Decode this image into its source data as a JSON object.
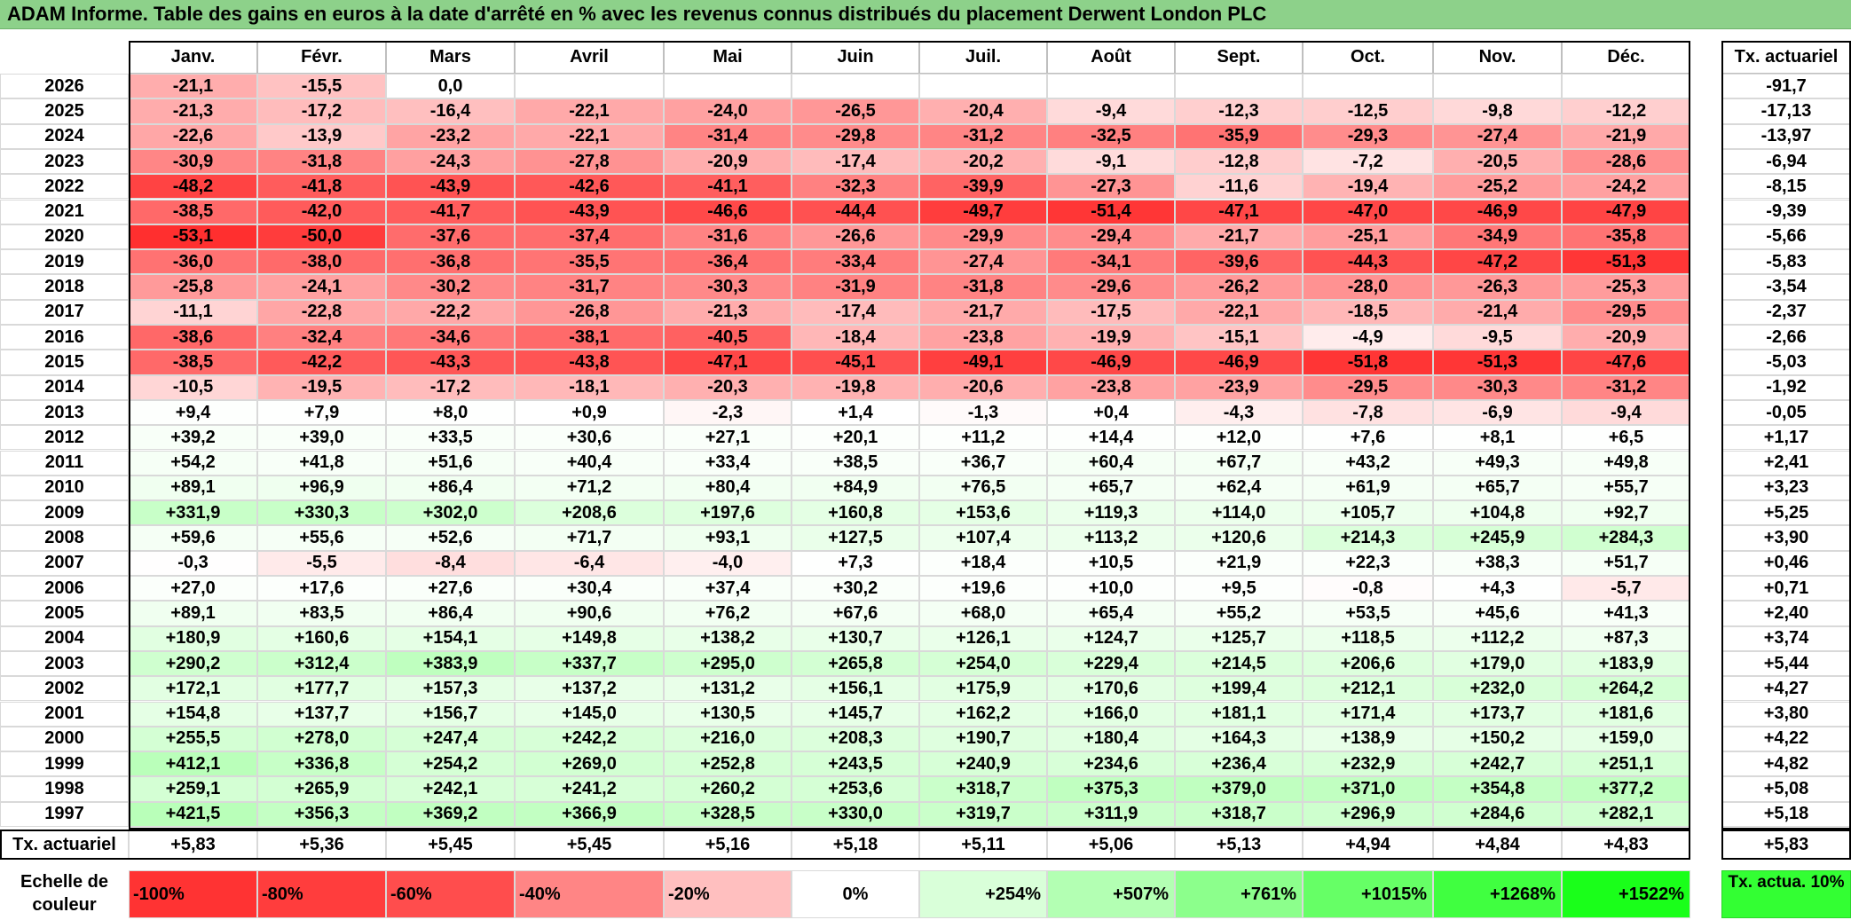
{
  "title": "ADAM Informe. Table des gains en euros à la date d'arrêté en % avec les revenus connus distribués du placement Derwent London PLC",
  "chart_data": {
    "type": "heatmap",
    "title": "ADAM Informe. Table des gains en euros à la date d'arrêté en % avec les revenus connus distribués du placement Derwent London PLC",
    "columns": [
      "Janv.",
      "Févr.",
      "Mars",
      "Avril",
      "Mai",
      "Juin",
      "Juil.",
      "Août",
      "Sept.",
      "Oct.",
      "Nov.",
      "Déc."
    ],
    "rate_column_label": "Tx. actuariel",
    "rows": [
      {
        "year": "2026",
        "values": [
          "-21,1",
          "-15,5",
          "0,0",
          "",
          "",
          "",
          "",
          "",
          "",
          "",
          "",
          ""
        ],
        "rate": "-91,7"
      },
      {
        "year": "2025",
        "values": [
          "-21,3",
          "-17,2",
          "-16,4",
          "-22,1",
          "-24,0",
          "-26,5",
          "-20,4",
          "-9,4",
          "-12,3",
          "-12,5",
          "-9,8",
          "-12,2"
        ],
        "rate": "-17,13"
      },
      {
        "year": "2024",
        "values": [
          "-22,6",
          "-13,9",
          "-23,2",
          "-22,1",
          "-31,4",
          "-29,8",
          "-31,2",
          "-32,5",
          "-35,9",
          "-29,3",
          "-27,4",
          "-21,9"
        ],
        "rate": "-13,97"
      },
      {
        "year": "2023",
        "values": [
          "-30,9",
          "-31,8",
          "-24,3",
          "-27,8",
          "-20,9",
          "-17,4",
          "-20,2",
          "-9,1",
          "-12,8",
          "-7,2",
          "-20,5",
          "-28,6"
        ],
        "rate": "-6,94"
      },
      {
        "year": "2022",
        "values": [
          "-48,2",
          "-41,8",
          "-43,9",
          "-42,6",
          "-41,1",
          "-32,3",
          "-39,9",
          "-27,3",
          "-11,6",
          "-19,4",
          "-25,2",
          "-24,2"
        ],
        "rate": "-8,15"
      },
      {
        "year": "2021",
        "values": [
          "-38,5",
          "-42,0",
          "-41,7",
          "-43,9",
          "-46,6",
          "-44,4",
          "-49,7",
          "-51,4",
          "-47,1",
          "-47,0",
          "-46,9",
          "-47,9"
        ],
        "rate": "-9,39"
      },
      {
        "year": "2020",
        "values": [
          "-53,1",
          "-50,0",
          "-37,6",
          "-37,4",
          "-31,6",
          "-26,6",
          "-29,9",
          "-29,4",
          "-21,7",
          "-25,1",
          "-34,9",
          "-35,8"
        ],
        "rate": "-5,66"
      },
      {
        "year": "2019",
        "values": [
          "-36,0",
          "-38,0",
          "-36,8",
          "-35,5",
          "-36,4",
          "-33,4",
          "-27,4",
          "-34,1",
          "-39,6",
          "-44,3",
          "-47,2",
          "-51,3"
        ],
        "rate": "-5,83"
      },
      {
        "year": "2018",
        "values": [
          "-25,8",
          "-24,1",
          "-30,2",
          "-31,7",
          "-30,3",
          "-31,9",
          "-31,8",
          "-29,6",
          "-26,2",
          "-28,0",
          "-26,3",
          "-25,3"
        ],
        "rate": "-3,54"
      },
      {
        "year": "2017",
        "values": [
          "-11,1",
          "-22,8",
          "-22,2",
          "-26,8",
          "-21,3",
          "-17,4",
          "-21,7",
          "-17,5",
          "-22,1",
          "-18,5",
          "-21,4",
          "-29,5"
        ],
        "rate": "-2,37"
      },
      {
        "year": "2016",
        "values": [
          "-38,6",
          "-32,4",
          "-34,6",
          "-38,1",
          "-40,5",
          "-18,4",
          "-23,8",
          "-19,9",
          "-15,1",
          "-4,9",
          "-9,5",
          "-20,9"
        ],
        "rate": "-2,66"
      },
      {
        "year": "2015",
        "values": [
          "-38,5",
          "-42,2",
          "-43,3",
          "-43,8",
          "-47,1",
          "-45,1",
          "-49,1",
          "-46,9",
          "-46,9",
          "-51,8",
          "-51,3",
          "-47,6"
        ],
        "rate": "-5,03"
      },
      {
        "year": "2014",
        "values": [
          "-10,5",
          "-19,5",
          "-17,2",
          "-18,1",
          "-20,3",
          "-19,8",
          "-20,6",
          "-23,8",
          "-23,9",
          "-29,5",
          "-30,3",
          "-31,2"
        ],
        "rate": "-1,92"
      },
      {
        "year": "2013",
        "values": [
          "+9,4",
          "+7,9",
          "+8,0",
          "+0,9",
          "-2,3",
          "+1,4",
          "-1,3",
          "+0,4",
          "-4,3",
          "-7,8",
          "-6,9",
          "-9,4"
        ],
        "rate": "-0,05"
      },
      {
        "year": "2012",
        "values": [
          "+39,2",
          "+39,0",
          "+33,5",
          "+30,6",
          "+27,1",
          "+20,1",
          "+11,2",
          "+14,4",
          "+12,0",
          "+7,6",
          "+8,1",
          "+6,5"
        ],
        "rate": "+1,17"
      },
      {
        "year": "2011",
        "values": [
          "+54,2",
          "+41,8",
          "+51,6",
          "+40,4",
          "+33,4",
          "+38,5",
          "+36,7",
          "+60,4",
          "+67,7",
          "+43,2",
          "+49,3",
          "+49,8"
        ],
        "rate": "+2,41"
      },
      {
        "year": "2010",
        "values": [
          "+89,1",
          "+96,9",
          "+86,4",
          "+71,2",
          "+80,4",
          "+84,9",
          "+76,5",
          "+65,7",
          "+62,4",
          "+61,9",
          "+65,7",
          "+55,7"
        ],
        "rate": "+3,23"
      },
      {
        "year": "2009",
        "values": [
          "+331,9",
          "+330,3",
          "+302,0",
          "+208,6",
          "+197,6",
          "+160,8",
          "+153,6",
          "+119,3",
          "+114,0",
          "+105,7",
          "+104,8",
          "+92,7"
        ],
        "rate": "+5,25"
      },
      {
        "year": "2008",
        "values": [
          "+59,6",
          "+55,6",
          "+52,6",
          "+71,7",
          "+93,1",
          "+127,5",
          "+107,4",
          "+113,2",
          "+120,6",
          "+214,3",
          "+245,9",
          "+284,3"
        ],
        "rate": "+3,90"
      },
      {
        "year": "2007",
        "values": [
          "-0,3",
          "-5,5",
          "-8,4",
          "-6,4",
          "-4,0",
          "+7,3",
          "+18,4",
          "+10,5",
          "+21,9",
          "+22,3",
          "+38,3",
          "+51,7"
        ],
        "rate": "+0,46"
      },
      {
        "year": "2006",
        "values": [
          "+27,0",
          "+17,6",
          "+27,6",
          "+30,4",
          "+37,4",
          "+30,2",
          "+19,6",
          "+10,0",
          "+9,5",
          "-0,8",
          "+4,3",
          "-5,7"
        ],
        "rate": "+0,71"
      },
      {
        "year": "2005",
        "values": [
          "+89,1",
          "+83,5",
          "+86,4",
          "+90,6",
          "+76,2",
          "+67,6",
          "+68,0",
          "+65,4",
          "+55,2",
          "+53,5",
          "+45,6",
          "+41,3"
        ],
        "rate": "+2,40"
      },
      {
        "year": "2004",
        "values": [
          "+180,9",
          "+160,6",
          "+154,1",
          "+149,8",
          "+138,2",
          "+130,7",
          "+126,1",
          "+124,7",
          "+125,7",
          "+118,5",
          "+112,2",
          "+87,3"
        ],
        "rate": "+3,74"
      },
      {
        "year": "2003",
        "values": [
          "+290,2",
          "+312,4",
          "+383,9",
          "+337,7",
          "+295,0",
          "+265,8",
          "+254,0",
          "+229,4",
          "+214,5",
          "+206,6",
          "+179,0",
          "+183,9"
        ],
        "rate": "+5,44"
      },
      {
        "year": "2002",
        "values": [
          "+172,1",
          "+177,7",
          "+157,3",
          "+137,2",
          "+131,2",
          "+156,1",
          "+175,9",
          "+170,6",
          "+199,4",
          "+212,1",
          "+232,0",
          "+264,2"
        ],
        "rate": "+4,27"
      },
      {
        "year": "2001",
        "values": [
          "+154,8",
          "+137,7",
          "+156,7",
          "+145,0",
          "+130,5",
          "+145,7",
          "+162,2",
          "+166,0",
          "+181,1",
          "+171,4",
          "+173,7",
          "+181,6"
        ],
        "rate": "+3,80"
      },
      {
        "year": "2000",
        "values": [
          "+255,5",
          "+278,0",
          "+247,4",
          "+242,2",
          "+216,0",
          "+208,3",
          "+190,7",
          "+180,4",
          "+164,3",
          "+138,9",
          "+150,2",
          "+159,0"
        ],
        "rate": "+4,22"
      },
      {
        "year": "1999",
        "values": [
          "+412,1",
          "+336,8",
          "+254,2",
          "+269,0",
          "+252,8",
          "+243,5",
          "+240,9",
          "+234,6",
          "+236,4",
          "+232,9",
          "+242,7",
          "+251,1"
        ],
        "rate": "+4,82"
      },
      {
        "year": "1998",
        "values": [
          "+259,1",
          "+265,9",
          "+242,1",
          "+241,2",
          "+260,2",
          "+253,6",
          "+318,7",
          "+375,3",
          "+379,0",
          "+371,0",
          "+354,8",
          "+377,2"
        ],
        "rate": "+5,08"
      },
      {
        "year": "1997",
        "values": [
          "+421,5",
          "+356,3",
          "+369,2",
          "+366,9",
          "+328,5",
          "+330,0",
          "+319,7",
          "+311,9",
          "+318,7",
          "+296,9",
          "+284,6",
          "+282,1"
        ],
        "rate": "+5,18"
      }
    ],
    "summary_row": {
      "label": "Tx. actuariel",
      "values": [
        "+5,83",
        "+5,36",
        "+5,45",
        "+5,45",
        "+5,16",
        "+5,18",
        "+5,11",
        "+5,06",
        "+5,13",
        "+4,94",
        "+4,84",
        "+4,83"
      ],
      "total": "+5,83"
    },
    "color_scale": {
      "label": "Echelle de couleur",
      "stops": [
        {
          "label": "-100%",
          "color": "#ff3333"
        },
        {
          "label": "-80%",
          "color": "#ff3d3d"
        },
        {
          "label": "-60%",
          "color": "#ff4d4d"
        },
        {
          "label": "-40%",
          "color": "#ff8585"
        },
        {
          "label": "-20%",
          "color": "#ffbfbf"
        },
        {
          "label": "0%",
          "color": "#ffffff"
        },
        {
          "label": "+254%",
          "color": "#d9ffd9"
        },
        {
          "label": "+507%",
          "color": "#b3ffb3"
        },
        {
          "label": "+761%",
          "color": "#8cff8c"
        },
        {
          "label": "+1015%",
          "color": "#66ff66"
        },
        {
          "label": "+1268%",
          "color": "#40ff40"
        },
        {
          "label": "+1522%",
          "color": "#1aff1a"
        }
      ],
      "rate_box": "Tx. actua. 10%",
      "rate_box_color": "#33ff33"
    }
  }
}
